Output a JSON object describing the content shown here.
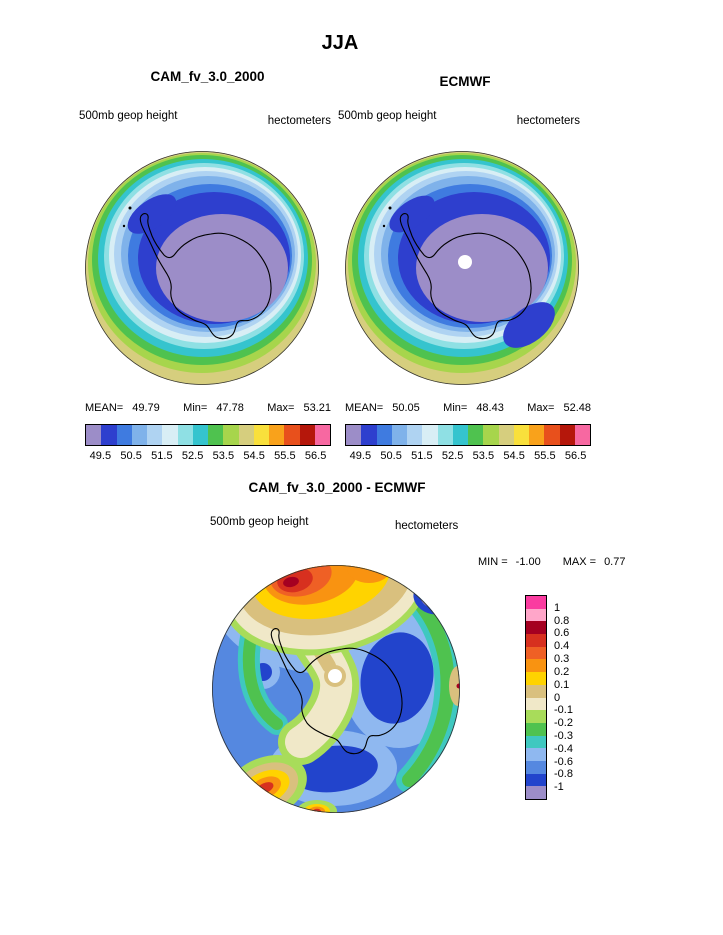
{
  "page": {
    "title": "JJA",
    "background": "#FFFFFF"
  },
  "panels": {
    "cam": {
      "title": "CAM_fv_3.0_2000",
      "field_label": "500mb geop height",
      "units_label": "hectometers",
      "stats": {
        "mean_label": "MEAN=",
        "mean": "49.79",
        "min_label": "Min=",
        "min": "47.78",
        "max_label": "Max=",
        "max": "53.21"
      }
    },
    "ecmwf": {
      "title": "ECMWF",
      "field_label": "500mb geop height",
      "units_label": "hectometers",
      "stats": {
        "mean_label": "MEAN=",
        "mean": "50.05",
        "min_label": "Min=",
        "min": "48.43",
        "max_label": "Max=",
        "max": "52.48"
      }
    },
    "diff": {
      "title": "CAM_fv_3.0_2000 - ECMWF",
      "field_label": "500mb geop height",
      "units_label": "hectometers",
      "stats": {
        "min_label": "MIN =",
        "min": "-1.00",
        "max_label": "MAX =",
        "max": "0.77"
      }
    }
  },
  "colorbar_top": {
    "labels": [
      "49.5",
      "50.5",
      "51.5",
      "52.5",
      "53.5",
      "54.5",
      "55.5",
      "56.5"
    ],
    "colors": [
      "#9C8DC8",
      "#2E3FCE",
      "#3F7BE0",
      "#7FB2EA",
      "#AFD3F2",
      "#D8EEF5",
      "#8FE0E4",
      "#35C4CE",
      "#4FC24F",
      "#A7D54C",
      "#D6CE7E",
      "#F9E03C",
      "#F9A21B",
      "#E8501C",
      "#B5170B",
      "#F768A1"
    ]
  },
  "colorbar_diff": {
    "labels": [
      "1",
      "0.8",
      "0.6",
      "0.4",
      "0.3",
      "0.2",
      "0.1",
      "0",
      "-0.1",
      "-0.2",
      "-0.3",
      "-0.4",
      "-0.6",
      "-0.8",
      "-1"
    ],
    "colors": [
      "#FA3CA0",
      "#FFA6C9",
      "#A50021",
      "#D7301F",
      "#EF6025",
      "#F99311",
      "#FFD300",
      "#D9C07E",
      "#F0E8C8",
      "#A8DC5A",
      "#4FC24F",
      "#3FC8C0",
      "#8FB8F0",
      "#5588E0",
      "#2244CC",
      "#9C8DC8"
    ]
  },
  "chart_data": [
    {
      "type": "heatmap",
      "subtype": "polar_contour_map",
      "title": "CAM_fv_3.0_2000",
      "season": "JJA",
      "variable": "500mb geop height",
      "units": "hectometers",
      "region": "Antarctica (south polar view)",
      "stats": {
        "mean": 49.79,
        "min": 47.78,
        "max": 53.21
      },
      "colorbar_tick_labels": [
        49.5,
        50.5,
        51.5,
        52.5,
        53.5,
        54.5,
        55.5,
        56.5
      ],
      "n_color_levels": 16,
      "legend_position": "below"
    },
    {
      "type": "heatmap",
      "subtype": "polar_contour_map",
      "title": "ECMWF",
      "season": "JJA",
      "variable": "500mb geop height",
      "units": "hectometers",
      "region": "Antarctica (south polar view)",
      "stats": {
        "mean": 50.05,
        "min": 48.43,
        "max": 52.48
      },
      "colorbar_tick_labels": [
        49.5,
        50.5,
        51.5,
        52.5,
        53.5,
        54.5,
        55.5,
        56.5
      ],
      "n_color_levels": 16,
      "legend_position": "below"
    },
    {
      "type": "heatmap",
      "subtype": "polar_contour_map",
      "title": "CAM_fv_3.0_2000 - ECMWF",
      "season": "JJA",
      "variable": "500mb geop height",
      "units": "hectometers",
      "region": "Antarctica (south polar view)",
      "stats": {
        "min": -1.0,
        "max": 0.77
      },
      "colorbar_tick_labels": [
        1,
        0.8,
        0.6,
        0.4,
        0.3,
        0.2,
        0.1,
        0,
        -0.1,
        -0.2,
        -0.3,
        -0.4,
        -0.6,
        -0.8,
        -1
      ],
      "n_color_levels": 16,
      "legend_position": "right"
    }
  ]
}
